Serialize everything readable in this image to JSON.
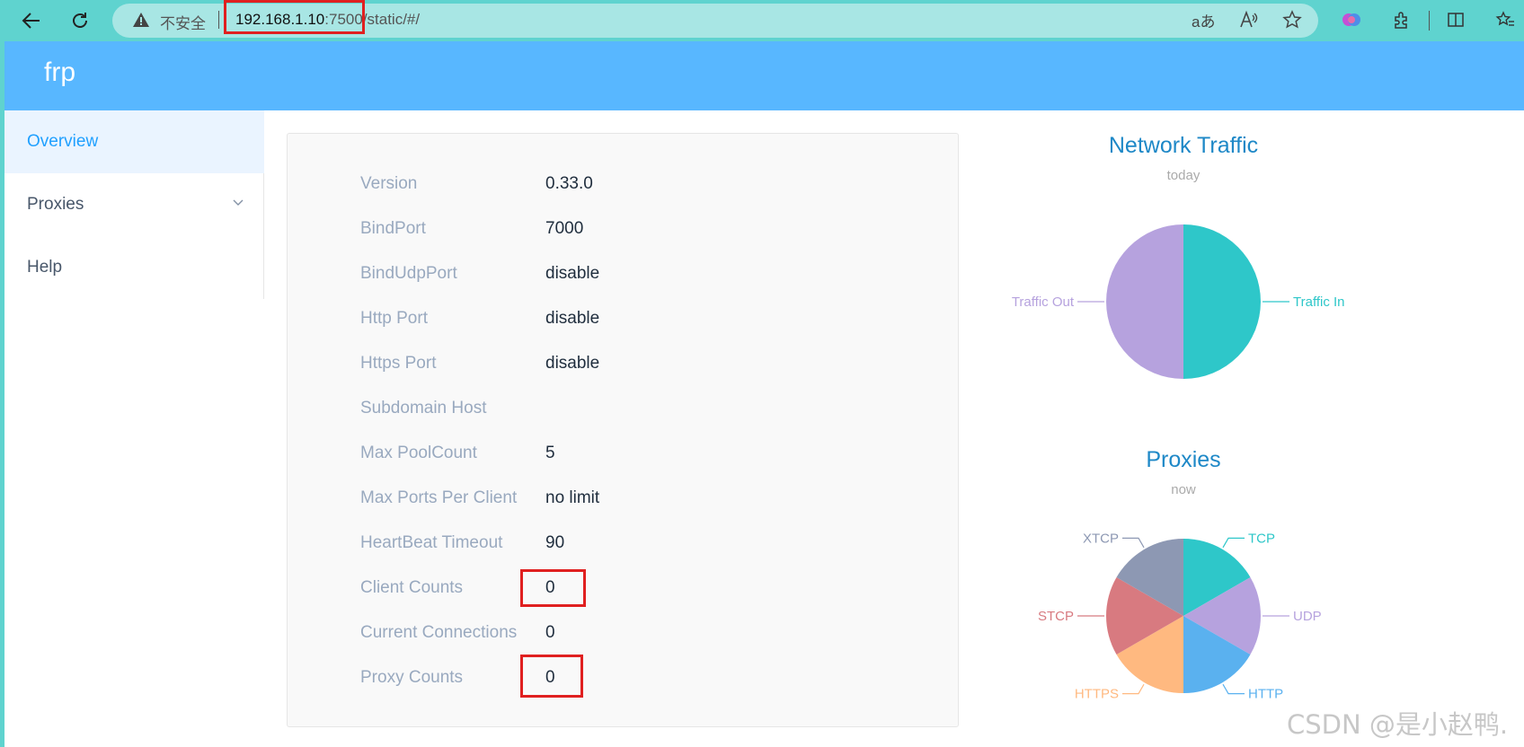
{
  "browser": {
    "insecure_label": "不安全",
    "url_host": "192.168.1.10",
    "url_port": ":7500",
    "url_path": "/static/#/"
  },
  "app": {
    "title": "frp"
  },
  "sidebar": {
    "items": [
      {
        "label": "Overview",
        "active": true
      },
      {
        "label": "Proxies",
        "expandable": true
      },
      {
        "label": "Help"
      }
    ]
  },
  "overview": {
    "rows": [
      {
        "label": "Version",
        "value": "0.33.0"
      },
      {
        "label": "BindPort",
        "value": "7000"
      },
      {
        "label": "BindUdpPort",
        "value": "disable"
      },
      {
        "label": "Http Port",
        "value": "disable"
      },
      {
        "label": "Https Port",
        "value": "disable"
      },
      {
        "label": "Subdomain Host",
        "value": ""
      },
      {
        "label": "Max PoolCount",
        "value": "5"
      },
      {
        "label": "Max Ports Per Client",
        "value": "no limit"
      },
      {
        "label": "HeartBeat Timeout",
        "value": "90"
      },
      {
        "label": "Client Counts",
        "value": "0"
      },
      {
        "label": "Current Connections",
        "value": "0"
      },
      {
        "label": "Proxy Counts",
        "value": "0"
      }
    ]
  },
  "chart_data": [
    {
      "type": "pie",
      "title": "Network Traffic",
      "subtitle": "today",
      "categories": [
        "Traffic In",
        "Traffic Out"
      ],
      "values": [
        1,
        1
      ],
      "colors": [
        "#2ec7c9",
        "#b6a2de"
      ]
    },
    {
      "type": "pie",
      "title": "Proxies",
      "subtitle": "now",
      "categories": [
        "TCP",
        "UDP",
        "HTTP",
        "HTTPS",
        "STCP",
        "XTCP"
      ],
      "values": [
        1,
        1,
        1,
        1,
        1,
        1
      ],
      "colors": [
        "#2ec7c9",
        "#b6a2de",
        "#5ab1ef",
        "#ffb980",
        "#d87a80",
        "#8d98b3"
      ]
    }
  ],
  "watermark": "CSDN @是小赵鸭."
}
